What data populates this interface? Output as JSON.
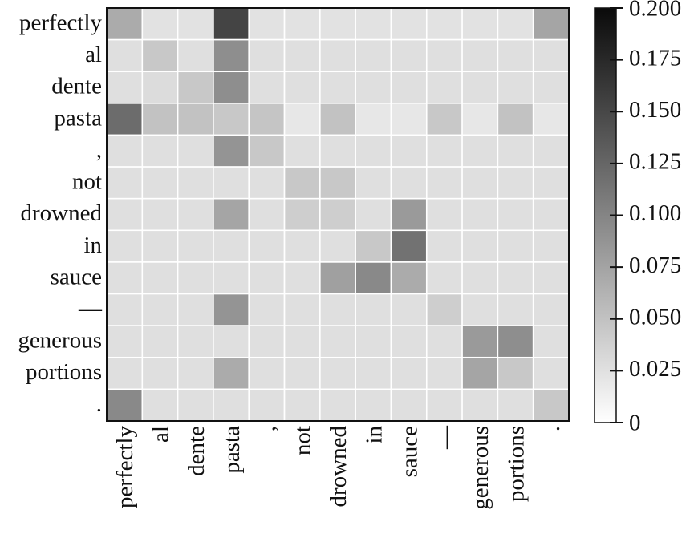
{
  "chart_data": {
    "type": "heatmap",
    "title": "",
    "xlabel": "",
    "ylabel": "",
    "x_labels": [
      "perfectly",
      "al",
      "dente",
      "pasta",
      ",",
      "not",
      "drowned",
      "in",
      "sauce",
      "—",
      "generous",
      "portions",
      "."
    ],
    "y_labels": [
      "perfectly",
      "al",
      "dente",
      "pasta",
      ",",
      "not",
      "drowned",
      "in",
      "sauce",
      "—",
      "generous",
      "portions",
      "."
    ],
    "values": [
      [
        0.06,
        0.012,
        0.012,
        0.15,
        0.012,
        0.012,
        0.012,
        0.012,
        0.012,
        0.012,
        0.012,
        0.012,
        0.065
      ],
      [
        0.015,
        0.035,
        0.015,
        0.085,
        0.015,
        0.015,
        0.015,
        0.015,
        0.015,
        0.015,
        0.015,
        0.015,
        0.015
      ],
      [
        0.015,
        0.018,
        0.035,
        0.085,
        0.015,
        0.015,
        0.015,
        0.015,
        0.015,
        0.015,
        0.015,
        0.015,
        0.015
      ],
      [
        0.115,
        0.04,
        0.04,
        0.035,
        0.038,
        0.008,
        0.04,
        0.008,
        0.008,
        0.035,
        0.008,
        0.04,
        0.008
      ],
      [
        0.015,
        0.015,
        0.015,
        0.08,
        0.035,
        0.015,
        0.015,
        0.015,
        0.015,
        0.015,
        0.015,
        0.015,
        0.015
      ],
      [
        0.015,
        0.015,
        0.015,
        0.015,
        0.015,
        0.035,
        0.035,
        0.015,
        0.015,
        0.015,
        0.015,
        0.015,
        0.015
      ],
      [
        0.015,
        0.015,
        0.015,
        0.065,
        0.015,
        0.03,
        0.03,
        0.015,
        0.075,
        0.015,
        0.015,
        0.015,
        0.015
      ],
      [
        0.015,
        0.015,
        0.015,
        0.015,
        0.015,
        0.015,
        0.015,
        0.035,
        0.11,
        0.015,
        0.015,
        0.015,
        0.015
      ],
      [
        0.015,
        0.015,
        0.015,
        0.015,
        0.015,
        0.015,
        0.07,
        0.09,
        0.06,
        0.015,
        0.015,
        0.015,
        0.015
      ],
      [
        0.015,
        0.015,
        0.015,
        0.08,
        0.015,
        0.015,
        0.015,
        0.015,
        0.015,
        0.03,
        0.015,
        0.015,
        0.015
      ],
      [
        0.015,
        0.015,
        0.015,
        0.015,
        0.015,
        0.015,
        0.015,
        0.015,
        0.015,
        0.015,
        0.075,
        0.085,
        0.015
      ],
      [
        0.015,
        0.015,
        0.015,
        0.06,
        0.015,
        0.015,
        0.015,
        0.015,
        0.015,
        0.015,
        0.065,
        0.035,
        0.015
      ],
      [
        0.09,
        0.015,
        0.015,
        0.015,
        0.015,
        0.015,
        0.015,
        0.015,
        0.015,
        0.015,
        0.015,
        0.015,
        0.035
      ]
    ],
    "colorbar": {
      "min": 0,
      "max": 0.2,
      "ticks": [
        0,
        0.025,
        0.05,
        0.075,
        0.1,
        0.125,
        0.15,
        0.175,
        0.2
      ],
      "tick_labels": [
        "0",
        "0.025",
        "0.050",
        "0.075",
        "0.100",
        "0.125",
        "0.150",
        "0.175",
        "0.200"
      ]
    },
    "colormap": [
      "#ffffff",
      "#0a0a0a"
    ],
    "grid": true,
    "grid_color": "#ffffff"
  }
}
